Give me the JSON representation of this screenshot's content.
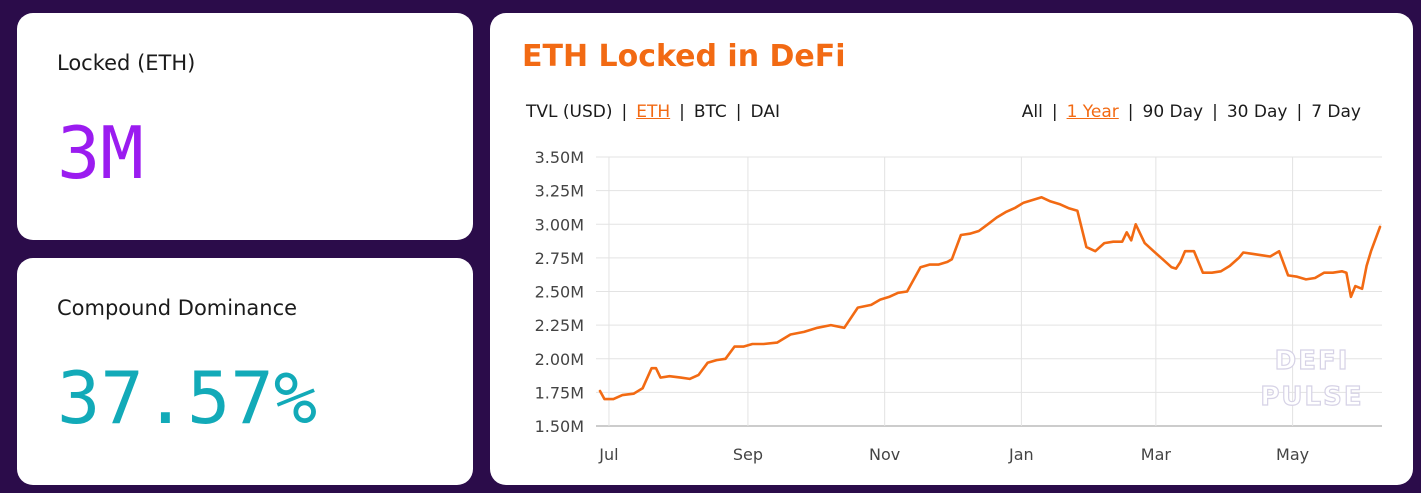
{
  "stats": {
    "locked": {
      "label": "Locked (ETH)",
      "value": "3M",
      "color": "#9b1cf0"
    },
    "dominance": {
      "label": "Compound Dominance",
      "value": "37.57%",
      "color": "#12aab8"
    }
  },
  "chart_panel": {
    "title": "ETH Locked in DeFi",
    "metric_toggles": [
      {
        "label": "TVL (USD)",
        "active": false
      },
      {
        "label": "ETH",
        "active": true
      },
      {
        "label": "BTC",
        "active": false
      },
      {
        "label": "DAI",
        "active": false
      }
    ],
    "range_toggles": [
      {
        "label": "All",
        "active": false
      },
      {
        "label": "1 Year",
        "active": true
      },
      {
        "label": "90 Day",
        "active": false
      },
      {
        "label": "30 Day",
        "active": false
      },
      {
        "label": "7 Day",
        "active": false
      }
    ],
    "watermark": [
      "DEFI",
      "PULSE"
    ],
    "accent_color": "#f26a13"
  },
  "chart_data": {
    "type": "line",
    "title": "ETH Locked in DeFi",
    "xlabel": "",
    "ylabel": "",
    "x_tick_labels": [
      "Jul",
      "Sep",
      "Nov",
      "Jan",
      "Mar",
      "May"
    ],
    "y_tick_labels": [
      "3.50M",
      "3.25M",
      "3.00M",
      "2.75M",
      "2.50M",
      "2.25M",
      "2.00M",
      "1.75M",
      "1.50M"
    ],
    "ylim": [
      1500000,
      3500000
    ],
    "grid": true,
    "series": [
      {
        "color": "#f26a13",
        "x": [
          "2019-06-27",
          "2019-06-29",
          "2019-07-03",
          "2019-07-07",
          "2019-07-12",
          "2019-07-16",
          "2019-07-20",
          "2019-07-22",
          "2019-07-24",
          "2019-07-28",
          "2019-08-02",
          "2019-08-06",
          "2019-08-10",
          "2019-08-14",
          "2019-08-18",
          "2019-08-22",
          "2019-08-26",
          "2019-08-30",
          "2019-09-03",
          "2019-09-08",
          "2019-09-14",
          "2019-09-20",
          "2019-09-26",
          "2019-10-02",
          "2019-10-08",
          "2019-10-14",
          "2019-10-20",
          "2019-10-26",
          "2019-10-30",
          "2019-11-03",
          "2019-11-07",
          "2019-11-11",
          "2019-11-17",
          "2019-11-21",
          "2019-11-25",
          "2019-11-29",
          "2019-12-01",
          "2019-12-05",
          "2019-12-09",
          "2019-12-13",
          "2019-12-17",
          "2019-12-21",
          "2019-12-25",
          "2019-12-29",
          "2020-01-02",
          "2020-01-06",
          "2020-01-10",
          "2020-01-14",
          "2020-01-18",
          "2020-01-22",
          "2020-01-26",
          "2020-01-30",
          "2020-02-03",
          "2020-02-07",
          "2020-02-11",
          "2020-02-15",
          "2020-02-17",
          "2020-02-19",
          "2020-02-21",
          "2020-02-25",
          "2020-02-29",
          "2020-03-04",
          "2020-03-08",
          "2020-03-10",
          "2020-03-12",
          "2020-03-14",
          "2020-03-18",
          "2020-03-22",
          "2020-03-26",
          "2020-03-30",
          "2020-04-03",
          "2020-04-07",
          "2020-04-09",
          "2020-04-13",
          "2020-04-17",
          "2020-04-21",
          "2020-04-25",
          "2020-04-29",
          "2020-05-03",
          "2020-05-07",
          "2020-05-11",
          "2020-05-15",
          "2020-05-19",
          "2020-05-23",
          "2020-05-25",
          "2020-05-27",
          "2020-05-29",
          "2020-06-01",
          "2020-06-03",
          "2020-06-05",
          "2020-06-09"
        ],
        "values": [
          1760000,
          1700000,
          1700000,
          1730000,
          1740000,
          1780000,
          1930000,
          1930000,
          1860000,
          1870000,
          1860000,
          1850000,
          1880000,
          1970000,
          1990000,
          2000000,
          2090000,
          2090000,
          2110000,
          2110000,
          2120000,
          2180000,
          2200000,
          2230000,
          2250000,
          2230000,
          2380000,
          2400000,
          2440000,
          2460000,
          2490000,
          2500000,
          2680000,
          2700000,
          2700000,
          2720000,
          2740000,
          2920000,
          2930000,
          2950000,
          3000000,
          3050000,
          3090000,
          3120000,
          3160000,
          3180000,
          3200000,
          3170000,
          3150000,
          3120000,
          3100000,
          2830000,
          2800000,
          2860000,
          2870000,
          2870000,
          2940000,
          2880000,
          3000000,
          2860000,
          2800000,
          2740000,
          2680000,
          2670000,
          2720000,
          2800000,
          2800000,
          2640000,
          2640000,
          2650000,
          2690000,
          2750000,
          2790000,
          2780000,
          2770000,
          2760000,
          2800000,
          2620000,
          2610000,
          2590000,
          2600000,
          2640000,
          2640000,
          2650000,
          2640000,
          2460000,
          2540000,
          2520000,
          2690000,
          2800000,
          2980000
        ]
      }
    ]
  }
}
